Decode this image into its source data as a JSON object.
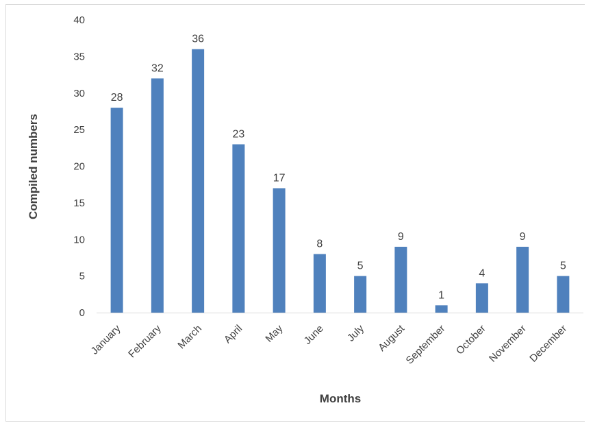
{
  "chart_data": {
    "type": "bar",
    "title": "",
    "xlabel": "Months",
    "ylabel": "Compiled numbers",
    "categories": [
      "January",
      "February",
      "March",
      "April",
      "May",
      "June",
      "July",
      "August",
      "September",
      "October",
      "November",
      "December"
    ],
    "values": [
      28,
      32,
      36,
      23,
      17,
      8,
      5,
      9,
      1,
      4,
      9,
      5
    ],
    "ylim": [
      0,
      40
    ],
    "yticks": [
      0,
      5,
      10,
      15,
      20,
      25,
      30,
      35,
      40
    ],
    "grid": false,
    "legend": "none",
    "bar_color": "#4f81bd",
    "text_color": "#404040",
    "axis_color": "#d9d9d9"
  }
}
